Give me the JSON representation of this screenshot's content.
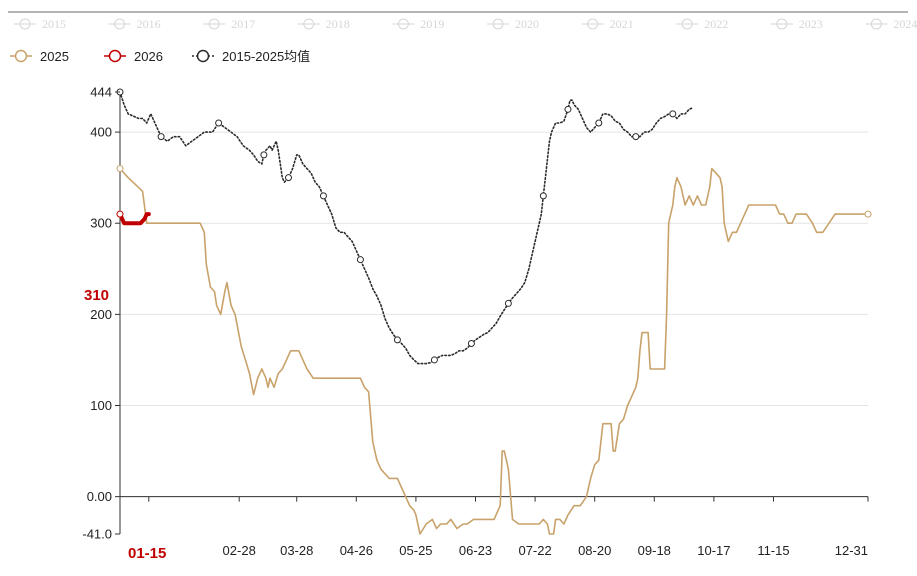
{
  "chart_data": {
    "type": "line",
    "title": "",
    "xlabel": "",
    "ylabel": "",
    "ylim": [
      -41,
      444
    ],
    "grid": true,
    "legend_position": "top-left",
    "faded_legend": [
      "2015",
      "2016",
      "2017",
      "2018",
      "2019",
      "2020",
      "2021",
      "2022",
      "2023",
      "2024"
    ],
    "legend": [
      "2025",
      "2026",
      "2015-2025均值"
    ],
    "y_ticks": [
      "444",
      "400",
      "300",
      "200",
      "100",
      "0.00",
      "-41.0"
    ],
    "y_tick_values": [
      444,
      400,
      300,
      200,
      100,
      0,
      -41
    ],
    "x_ticks": [
      "01-15",
      "02-28",
      "03-28",
      "04-26",
      "05-25",
      "06-23",
      "07-22",
      "08-20",
      "09-18",
      "10-17",
      "11-15",
      "12-31"
    ],
    "x_tick_days": [
      15,
      59,
      87,
      116,
      145,
      174,
      203,
      232,
      261,
      290,
      319,
      365
    ],
    "highlight": {
      "y_label": "310",
      "x_label": "01-15"
    },
    "colors": {
      "2025": "#c8a26a",
      "2026": "#c00000",
      "avg": "#2b2b2b",
      "faded": "#d6d6d6",
      "grid": "#e4e4e4",
      "axis": "#333333",
      "highlight": "#c00000"
    },
    "series": [
      {
        "name": "2025",
        "style": "solid",
        "points": [
          [
            1,
            360
          ],
          [
            5,
            350
          ],
          [
            12,
            335
          ],
          [
            14,
            300
          ],
          [
            20,
            300
          ],
          [
            40,
            300
          ],
          [
            42,
            290
          ],
          [
            43,
            255
          ],
          [
            45,
            230
          ],
          [
            47,
            225
          ],
          [
            48,
            210
          ],
          [
            50,
            200
          ],
          [
            52,
            225
          ],
          [
            53,
            235
          ],
          [
            55,
            210
          ],
          [
            56,
            205
          ],
          [
            57,
            200
          ],
          [
            60,
            165
          ],
          [
            62,
            150
          ],
          [
            64,
            135
          ],
          [
            66,
            112
          ],
          [
            68,
            130
          ],
          [
            70,
            140
          ],
          [
            72,
            130
          ],
          [
            73,
            120
          ],
          [
            74,
            130
          ],
          [
            76,
            120
          ],
          [
            78,
            135
          ],
          [
            80,
            140
          ],
          [
            82,
            150
          ],
          [
            84,
            160
          ],
          [
            86,
            160
          ],
          [
            88,
            160
          ],
          [
            90,
            150
          ],
          [
            92,
            140
          ],
          [
            95,
            130
          ],
          [
            100,
            130
          ],
          [
            105,
            130
          ],
          [
            110,
            130
          ],
          [
            115,
            130
          ],
          [
            118,
            130
          ],
          [
            120,
            120
          ],
          [
            122,
            115
          ],
          [
            124,
            60
          ],
          [
            126,
            40
          ],
          [
            128,
            30
          ],
          [
            132,
            20
          ],
          [
            136,
            20
          ],
          [
            138,
            10
          ],
          [
            140,
            0
          ],
          [
            142,
            -10
          ],
          [
            144,
            -15
          ],
          [
            145,
            -20
          ],
          [
            147,
            -41
          ],
          [
            150,
            -30
          ],
          [
            153,
            -25
          ],
          [
            155,
            -35
          ],
          [
            157,
            -30
          ],
          [
            160,
            -30
          ],
          [
            162,
            -25
          ],
          [
            165,
            -35
          ],
          [
            168,
            -30
          ],
          [
            170,
            -30
          ],
          [
            173,
            -25
          ],
          [
            176,
            -25
          ],
          [
            180,
            -25
          ],
          [
            183,
            -25
          ],
          [
            186,
            -10
          ],
          [
            187,
            50
          ],
          [
            188,
            50
          ],
          [
            190,
            30
          ],
          [
            192,
            -25
          ],
          [
            195,
            -30
          ],
          [
            200,
            -30
          ],
          [
            205,
            -30
          ],
          [
            207,
            -25
          ],
          [
            209,
            -30
          ],
          [
            210,
            -41
          ],
          [
            212,
            -41
          ],
          [
            213,
            -25
          ],
          [
            215,
            -25
          ],
          [
            217,
            -30
          ],
          [
            219,
            -20
          ],
          [
            222,
            -10
          ],
          [
            225,
            -10
          ],
          [
            228,
            0
          ],
          [
            230,
            20
          ],
          [
            232,
            35
          ],
          [
            234,
            40
          ],
          [
            236,
            80
          ],
          [
            238,
            80
          ],
          [
            240,
            80
          ],
          [
            241,
            50
          ],
          [
            242,
            50
          ],
          [
            244,
            80
          ],
          [
            246,
            85
          ],
          [
            248,
            100
          ],
          [
            250,
            110
          ],
          [
            252,
            120
          ],
          [
            253,
            130
          ],
          [
            254,
            160
          ],
          [
            255,
            180
          ],
          [
            256,
            180
          ],
          [
            258,
            180
          ],
          [
            259,
            140
          ],
          [
            262,
            140
          ],
          [
            266,
            140
          ],
          [
            267,
            200
          ],
          [
            268,
            300
          ],
          [
            269,
            310
          ],
          [
            270,
            320
          ],
          [
            271,
            340
          ],
          [
            272,
            350
          ],
          [
            274,
            340
          ],
          [
            276,
            320
          ],
          [
            278,
            330
          ],
          [
            280,
            320
          ],
          [
            282,
            330
          ],
          [
            284,
            320
          ],
          [
            286,
            320
          ],
          [
            288,
            340
          ],
          [
            289,
            360
          ],
          [
            291,
            355
          ],
          [
            293,
            350
          ],
          [
            294,
            340
          ],
          [
            295,
            300
          ],
          [
            297,
            280
          ],
          [
            299,
            290
          ],
          [
            301,
            290
          ],
          [
            303,
            300
          ],
          [
            305,
            310
          ],
          [
            307,
            320
          ],
          [
            310,
            320
          ],
          [
            315,
            320
          ],
          [
            320,
            320
          ],
          [
            322,
            310
          ],
          [
            324,
            310
          ],
          [
            326,
            300
          ],
          [
            328,
            300
          ],
          [
            330,
            310
          ],
          [
            335,
            310
          ],
          [
            338,
            300
          ],
          [
            340,
            290
          ],
          [
            343,
            290
          ],
          [
            346,
            300
          ],
          [
            349,
            310
          ],
          [
            365,
            310
          ]
        ]
      },
      {
        "name": "2026",
        "style": "solid",
        "points": [
          [
            1,
            310
          ],
          [
            2,
            305
          ],
          [
            3,
            300
          ],
          [
            5,
            300
          ],
          [
            7,
            300
          ],
          [
            9,
            300
          ],
          [
            11,
            300
          ],
          [
            13,
            305
          ],
          [
            14,
            310
          ],
          [
            15,
            310
          ]
        ]
      },
      {
        "name": "2015-2025均值",
        "style": "dotted",
        "points": [
          [
            1,
            444
          ],
          [
            3,
            430
          ],
          [
            5,
            420
          ],
          [
            8,
            417
          ],
          [
            10,
            415
          ],
          [
            12,
            415
          ],
          [
            14,
            410
          ],
          [
            16,
            420
          ],
          [
            18,
            410
          ],
          [
            21,
            395
          ],
          [
            24,
            390
          ],
          [
            27,
            395
          ],
          [
            30,
            395
          ],
          [
            33,
            385
          ],
          [
            36,
            390
          ],
          [
            39,
            395
          ],
          [
            42,
            400
          ],
          [
            46,
            400
          ],
          [
            49,
            410
          ],
          [
            52,
            405
          ],
          [
            55,
            400
          ],
          [
            58,
            395
          ],
          [
            61,
            385
          ],
          [
            64,
            380
          ],
          [
            66,
            375
          ],
          [
            68,
            368
          ],
          [
            70,
            365
          ],
          [
            71,
            375
          ],
          [
            72,
            380
          ],
          [
            74,
            385
          ],
          [
            75,
            380
          ],
          [
            77,
            390
          ],
          [
            78,
            380
          ],
          [
            79,
            365
          ],
          [
            80,
            350
          ],
          [
            81,
            345
          ],
          [
            83,
            350
          ],
          [
            85,
            360
          ],
          [
            87,
            375
          ],
          [
            88,
            375
          ],
          [
            90,
            365
          ],
          [
            92,
            360
          ],
          [
            94,
            355
          ],
          [
            96,
            345
          ],
          [
            98,
            340
          ],
          [
            100,
            330
          ],
          [
            102,
            320
          ],
          [
            104,
            310
          ],
          [
            106,
            295
          ],
          [
            108,
            290
          ],
          [
            110,
            290
          ],
          [
            112,
            285
          ],
          [
            114,
            280
          ],
          [
            116,
            270
          ],
          [
            118,
            260
          ],
          [
            120,
            250
          ],
          [
            122,
            240
          ],
          [
            124,
            228
          ],
          [
            126,
            220
          ],
          [
            128,
            210
          ],
          [
            130,
            195
          ],
          [
            132,
            185
          ],
          [
            134,
            178
          ],
          [
            136,
            172
          ],
          [
            138,
            168
          ],
          [
            140,
            163
          ],
          [
            142,
            155
          ],
          [
            144,
            150
          ],
          [
            146,
            146
          ],
          [
            148,
            146
          ],
          [
            150,
            146
          ],
          [
            152,
            147
          ],
          [
            154,
            150
          ],
          [
            156,
            153
          ],
          [
            158,
            155
          ],
          [
            160,
            155
          ],
          [
            162,
            155
          ],
          [
            164,
            157
          ],
          [
            166,
            160
          ],
          [
            168,
            160
          ],
          [
            170,
            163
          ],
          [
            172,
            168
          ],
          [
            174,
            172
          ],
          [
            176,
            175
          ],
          [
            178,
            178
          ],
          [
            180,
            180
          ],
          [
            182,
            185
          ],
          [
            184,
            190
          ],
          [
            186,
            198
          ],
          [
            188,
            205
          ],
          [
            190,
            212
          ],
          [
            192,
            218
          ],
          [
            194,
            223
          ],
          [
            196,
            228
          ],
          [
            198,
            235
          ],
          [
            200,
            250
          ],
          [
            202,
            270
          ],
          [
            204,
            290
          ],
          [
            206,
            310
          ],
          [
            207,
            330
          ],
          [
            208,
            350
          ],
          [
            209,
            370
          ],
          [
            210,
            390
          ],
          [
            211,
            400
          ],
          [
            212,
            405
          ],
          [
            213,
            410
          ],
          [
            215,
            410
          ],
          [
            217,
            412
          ],
          [
            219,
            425
          ],
          [
            220,
            435
          ],
          [
            221,
            435
          ],
          [
            222,
            430
          ],
          [
            224,
            425
          ],
          [
            226,
            415
          ],
          [
            228,
            405
          ],
          [
            230,
            400
          ],
          [
            232,
            405
          ],
          [
            234,
            410
          ],
          [
            236,
            420
          ],
          [
            238,
            420
          ],
          [
            240,
            418
          ],
          [
            242,
            412
          ],
          [
            244,
            410
          ],
          [
            246,
            403
          ],
          [
            248,
            400
          ],
          [
            250,
            395
          ],
          [
            252,
            395
          ],
          [
            254,
            395
          ],
          [
            256,
            400
          ],
          [
            258,
            400
          ],
          [
            260,
            403
          ],
          [
            262,
            410
          ],
          [
            264,
            415
          ],
          [
            266,
            417
          ],
          [
            268,
            420
          ],
          [
            270,
            420
          ],
          [
            272,
            415
          ],
          [
            274,
            420
          ],
          [
            276,
            420
          ],
          [
            278,
            425
          ],
          [
            280,
            427
          ]
        ]
      }
    ]
  }
}
